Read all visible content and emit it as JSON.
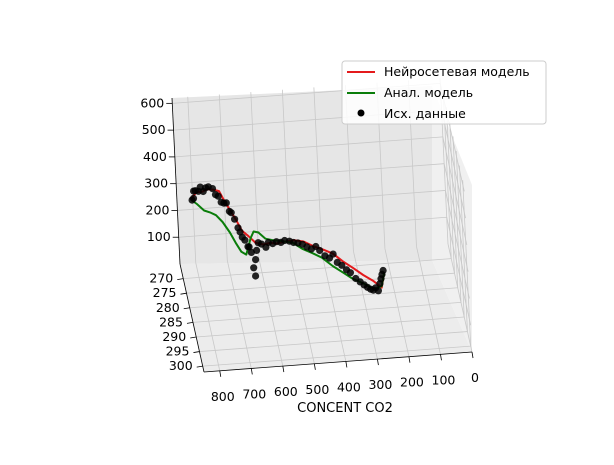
{
  "chart_data": {
    "type": "line",
    "projection": "3d",
    "xlabel": "CONCENT CO2",
    "ylabel": "",
    "zlabel": "",
    "x_ticks": [
      "800",
      "700",
      "600",
      "500",
      "400",
      "300",
      "200",
      "100",
      "0"
    ],
    "y_ticks": [
      "270",
      "275",
      "280",
      "285",
      "290",
      "295",
      "300"
    ],
    "z_ticks": [
      "100",
      "200",
      "300",
      "400",
      "500",
      "600"
    ],
    "xlim": [
      0,
      850
    ],
    "ylim": [
      265,
      302
    ],
    "zlim": [
      0,
      620
    ],
    "grid": true,
    "legend_position": "upper-right",
    "colors": {
      "neural": "#e41a1c",
      "analytical": "#0a7d0a",
      "data": "#000000",
      "pane": "#ececec",
      "grid": "#c8c8c8"
    },
    "series": [
      {
        "name": "Нейросетевая модель",
        "kind": "line",
        "color": "#e41a1c",
        "points": [
          [
            820,
            275,
            350
          ],
          [
            805,
            276,
            385
          ],
          [
            790,
            277,
            395
          ],
          [
            770,
            276,
            392
          ],
          [
            750,
            275,
            378
          ],
          [
            730,
            274,
            360
          ],
          [
            715,
            275,
            330
          ],
          [
            700,
            276,
            305
          ],
          [
            685,
            277,
            280
          ],
          [
            670,
            278,
            250
          ],
          [
            650,
            278,
            228
          ],
          [
            630,
            279,
            212
          ],
          [
            605,
            279,
            204
          ],
          [
            585,
            279,
            208
          ],
          [
            565,
            280,
            215
          ],
          [
            540,
            280,
            220
          ],
          [
            510,
            280,
            222
          ],
          [
            480,
            280,
            215
          ],
          [
            450,
            281,
            205
          ],
          [
            420,
            281,
            190
          ],
          [
            390,
            281,
            172
          ],
          [
            360,
            282,
            150
          ],
          [
            330,
            282,
            124
          ],
          [
            300,
            282,
            96
          ],
          [
            270,
            282,
            72
          ],
          [
            245,
            283,
            55
          ],
          [
            235,
            283,
            110
          ]
        ]
      },
      {
        "name": "Анал. модель",
        "kind": "line",
        "color": "#0a7d0a",
        "points": [
          [
            820,
            275,
            345
          ],
          [
            805,
            276,
            340
          ],
          [
            785,
            277,
            325
          ],
          [
            765,
            276,
            305
          ],
          [
            745,
            275,
            282
          ],
          [
            725,
            275,
            255
          ],
          [
            705,
            276,
            225
          ],
          [
            690,
            277,
            196
          ],
          [
            675,
            278,
            172
          ],
          [
            660,
            278,
            160
          ],
          [
            645,
            279,
            232
          ],
          [
            635,
            279,
            255
          ],
          [
            620,
            279,
            250
          ],
          [
            600,
            280,
            236
          ],
          [
            575,
            280,
            228
          ],
          [
            545,
            280,
            222
          ],
          [
            515,
            280,
            214
          ],
          [
            485,
            281,
            198
          ],
          [
            455,
            281,
            180
          ],
          [
            425,
            281,
            160
          ],
          [
            395,
            282,
            138
          ],
          [
            365,
            282,
            112
          ],
          [
            335,
            282,
            86
          ],
          [
            300,
            282,
            64
          ],
          [
            270,
            283,
            52
          ],
          [
            245,
            283,
            60
          ],
          [
            235,
            283,
            110
          ]
        ]
      },
      {
        "name": "Исх. данные",
        "kind": "scatter",
        "color": "#000000",
        "points": [
          [
            818,
            275,
            345
          ],
          [
            815,
            276,
            362
          ],
          [
            812,
            275,
            378
          ],
          [
            808,
            276,
            390
          ],
          [
            800,
            277,
            398
          ],
          [
            792,
            276,
            402
          ],
          [
            785,
            277,
            396
          ],
          [
            775,
            276,
            398
          ],
          [
            765,
            275,
            390
          ],
          [
            752,
            275,
            382
          ],
          [
            745,
            276,
            370
          ],
          [
            735,
            275,
            352
          ],
          [
            728,
            276,
            340
          ],
          [
            718,
            275,
            325
          ],
          [
            712,
            276,
            336
          ],
          [
            705,
            277,
            315
          ],
          [
            698,
            276,
            298
          ],
          [
            690,
            277,
            284
          ],
          [
            682,
            278,
            262
          ],
          [
            676,
            278,
            246
          ],
          [
            670,
            278,
            226
          ],
          [
            662,
            278,
            214
          ],
          [
            655,
            279,
            200
          ],
          [
            650,
            278,
            188
          ],
          [
            645,
            279,
            178
          ],
          [
            640,
            279,
            120
          ],
          [
            637,
            280,
            100
          ],
          [
            633,
            279,
            150
          ],
          [
            630,
            280,
            195
          ],
          [
            622,
            279,
            212
          ],
          [
            612,
            279,
            206
          ],
          [
            600,
            280,
            204
          ],
          [
            590,
            279,
            210
          ],
          [
            578,
            280,
            216
          ],
          [
            566,
            280,
            222
          ],
          [
            552,
            280,
            218
          ],
          [
            540,
            280,
            224
          ],
          [
            525,
            280,
            220
          ],
          [
            512,
            280,
            214
          ],
          [
            500,
            281,
            222
          ],
          [
            486,
            281,
            216
          ],
          [
            472,
            281,
            205
          ],
          [
            458,
            281,
            196
          ],
          [
            444,
            281,
            204
          ],
          [
            432,
            281,
            188
          ],
          [
            418,
            282,
            178
          ],
          [
            404,
            282,
            168
          ],
          [
            392,
            282,
            182
          ],
          [
            380,
            282,
            150
          ],
          [
            366,
            282,
            138
          ],
          [
            352,
            282,
            120
          ],
          [
            340,
            282,
            108
          ],
          [
            326,
            283,
            96
          ],
          [
            312,
            283,
            82
          ],
          [
            300,
            283,
            70
          ],
          [
            290,
            283,
            60
          ],
          [
            280,
            283,
            52
          ],
          [
            272,
            283,
            48
          ],
          [
            264,
            283,
            56
          ],
          [
            256,
            283,
            44
          ],
          [
            250,
            283,
            70
          ],
          [
            246,
            283,
            88
          ],
          [
            242,
            283,
            104
          ],
          [
            238,
            283,
            118
          ]
        ]
      }
    ]
  }
}
